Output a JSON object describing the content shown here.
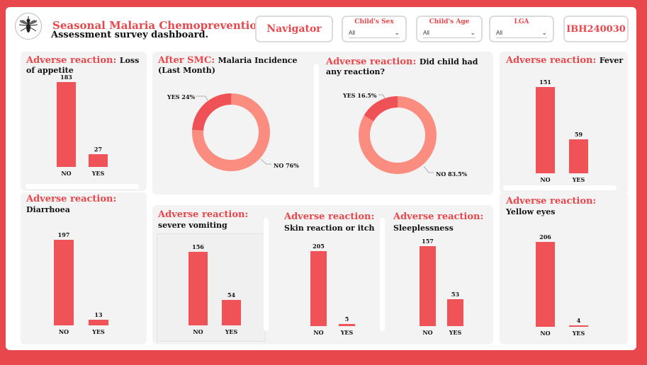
{
  "header": {
    "title": "Seasonal Malaria Chemoprevention",
    "subtitle": "Assessment survey dashboard.",
    "navigator_label": "Navigator",
    "report_id": "IBH240030"
  },
  "filters": [
    {
      "label": "Child's Sex",
      "value": "All"
    },
    {
      "label": "Child's Age",
      "value": "All"
    },
    {
      "label": "LGA",
      "value": "All"
    }
  ],
  "colors": {
    "accent": "#e8474c",
    "bar": "#f05357",
    "donut_light": "#fb8c80",
    "donut_dark": "#ef5256"
  },
  "cards": {
    "loss_appetite": {
      "title": "Adverse reaction:",
      "subtitle": "Loss of appetite"
    },
    "fever": {
      "title": "Adverse reaction:",
      "subtitle": "Fever"
    },
    "diarrhoea": {
      "title": "Adverse reaction:",
      "subtitle": "Diarrhoea"
    },
    "yellow_eyes": {
      "title": "Adverse reaction:",
      "subtitle": "Yellow eyes"
    },
    "vomiting": {
      "title": "Adverse reaction:",
      "subtitle": "severe vomiting"
    },
    "skin": {
      "title": "Adverse reaction:",
      "subtitle": "Skin reaction or itch"
    },
    "sleep": {
      "title": "Adverse reaction:",
      "subtitle": "Sleeplessness"
    },
    "incidence": {
      "title": "After SMC:",
      "subtitle": "Malaria Incidence (Last Month)"
    },
    "any_reaction": {
      "title": "Adverse reaction:",
      "subtitle": "Did child had any reaction?"
    }
  },
  "chart_data": [
    {
      "id": "loss_appetite",
      "type": "bar",
      "categories": [
        "NO",
        "YES"
      ],
      "values": [
        183,
        27
      ],
      "value_labels": [
        "183",
        "27"
      ]
    },
    {
      "id": "fever",
      "type": "bar",
      "categories": [
        "NO",
        "YES"
      ],
      "values": [
        151,
        59
      ],
      "value_labels": [
        "151",
        "59"
      ]
    },
    {
      "id": "diarrhoea",
      "type": "bar",
      "categories": [
        "NO",
        "YES"
      ],
      "values": [
        197,
        13
      ],
      "value_labels": [
        "197",
        "13"
      ]
    },
    {
      "id": "yellow_eyes",
      "type": "bar",
      "categories": [
        "NO",
        "YES"
      ],
      "values": [
        206,
        4
      ],
      "value_labels": [
        "206",
        "4"
      ]
    },
    {
      "id": "vomiting",
      "type": "bar",
      "categories": [
        "NO",
        "YES"
      ],
      "values": [
        156,
        54
      ],
      "value_labels": [
        "156",
        "54"
      ]
    },
    {
      "id": "skin",
      "type": "bar",
      "categories": [
        "NO",
        "YES"
      ],
      "values": [
        205,
        5
      ],
      "value_labels": [
        "205",
        "5"
      ]
    },
    {
      "id": "sleep",
      "type": "bar",
      "categories": [
        "NO",
        "YES"
      ],
      "values": [
        157,
        53
      ],
      "value_labels": [
        "157",
        "53"
      ]
    },
    {
      "id": "incidence",
      "type": "pie",
      "categories": [
        "YES",
        "NO"
      ],
      "values": [
        24,
        76
      ],
      "labels": [
        "YES 24%",
        "NO 76%"
      ]
    },
    {
      "id": "any_reaction",
      "type": "pie",
      "categories": [
        "YES",
        "NO"
      ],
      "values": [
        16.5,
        83.5
      ],
      "labels": [
        "YES 16.5%",
        "NO 83.5%"
      ]
    }
  ]
}
